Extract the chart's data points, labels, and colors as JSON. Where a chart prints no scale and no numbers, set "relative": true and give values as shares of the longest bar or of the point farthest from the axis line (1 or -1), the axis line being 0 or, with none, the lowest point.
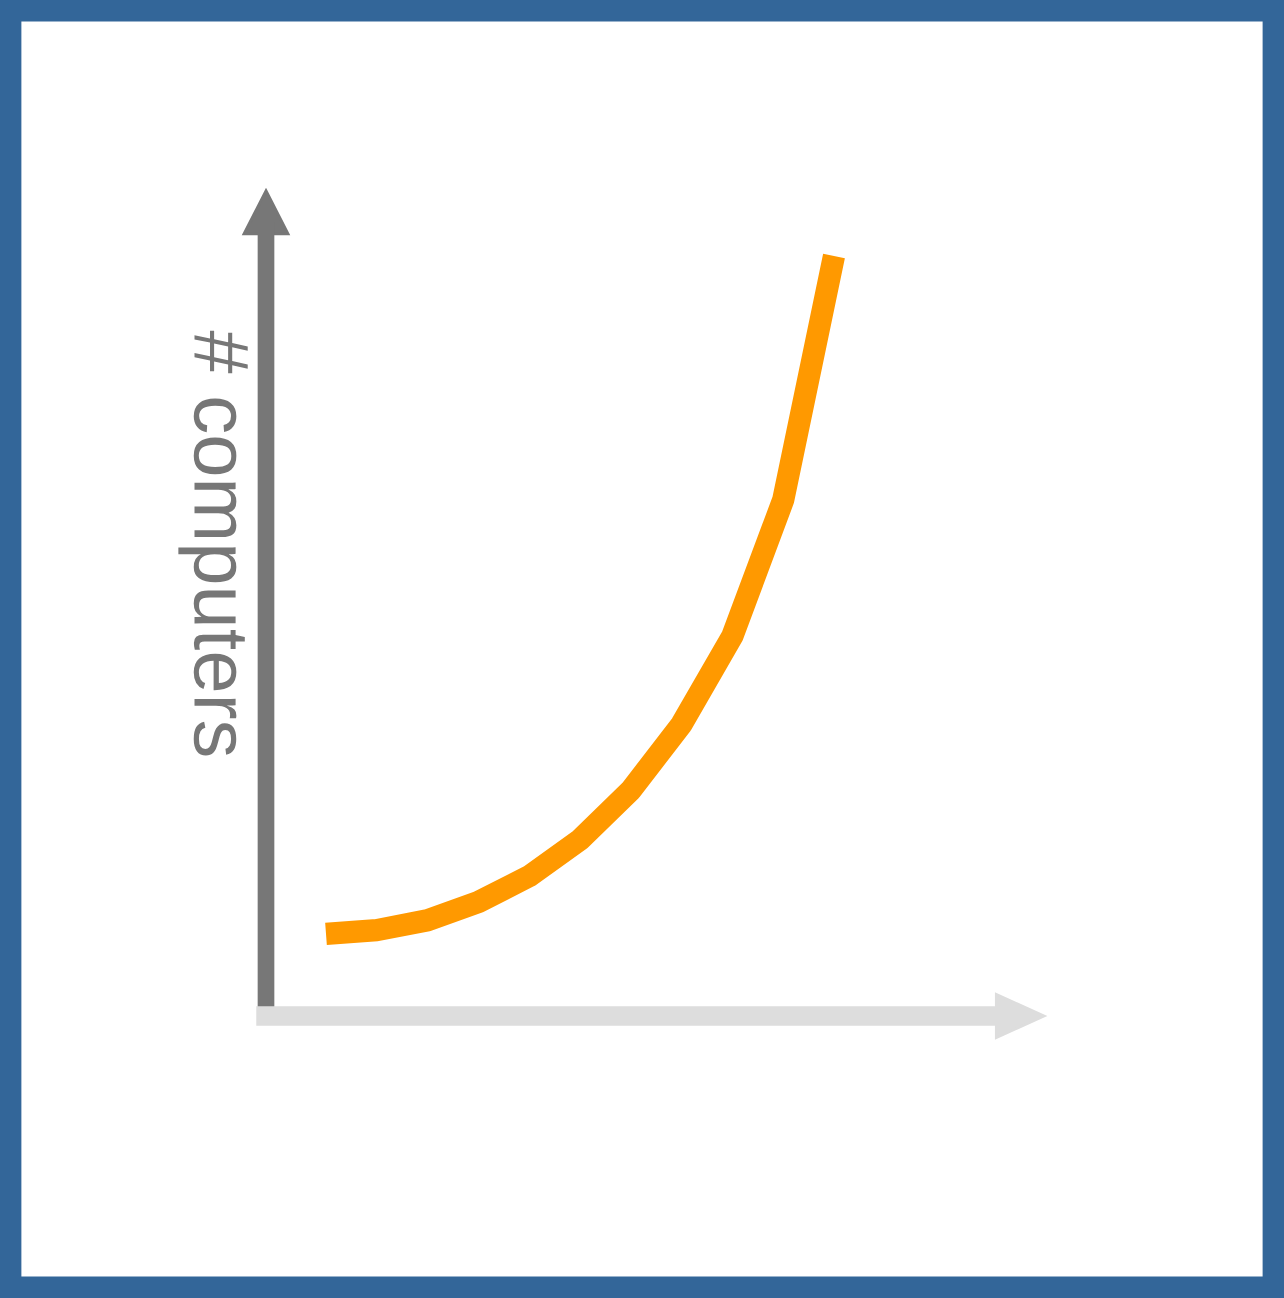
{
  "chart_data": {
    "type": "line",
    "relative": true,
    "ylabel": "# computers",
    "categories": [
      null,
      null,
      null,
      null,
      null,
      null,
      null,
      null,
      null,
      null,
      null
    ],
    "series": [
      {
        "color": "#ff9900",
        "values": [
          0.108,
          0.113,
          0.126,
          0.15,
          0.184,
          0.232,
          0.297,
          0.384,
          0.5,
          0.679,
          1.0
        ]
      }
    ],
    "marker": "none",
    "line_style": "solid"
  }
}
